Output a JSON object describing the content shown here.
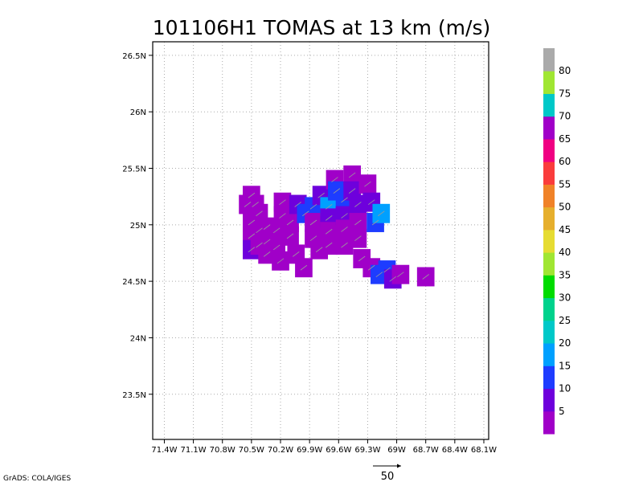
{
  "chart_data": {
    "type": "heatmap",
    "title": "101106H1 TOMAS at 13 km (m/s)",
    "x_tick_labels": [
      "71.4W",
      "71.1W",
      "70.8W",
      "70.5W",
      "70.2W",
      "69.9W",
      "69.6W",
      "69.3W",
      "69W",
      "68.7W",
      "68.4W",
      "68.1W"
    ],
    "x_tick_values": [
      -71.4,
      -71.1,
      -70.8,
      -70.5,
      -70.2,
      -69.9,
      -69.6,
      -69.3,
      -69.0,
      -68.7,
      -68.4,
      -68.1
    ],
    "y_tick_labels": [
      "23.5N",
      "24N",
      "24.5N",
      "25N",
      "25.5N",
      "26N",
      "26.5N"
    ],
    "y_tick_values": [
      23.5,
      24.0,
      24.5,
      25.0,
      25.5,
      26.0,
      26.5
    ],
    "xlim": [
      -71.52,
      -68.05
    ],
    "ylim": [
      23.1,
      26.62
    ],
    "grid": true,
    "colorbar": {
      "labels": [
        "5",
        "10",
        "15",
        "20",
        "25",
        "30",
        "35",
        "40",
        "45",
        "50",
        "55",
        "60",
        "65",
        "70",
        "75",
        "80"
      ],
      "label_values": [
        5,
        10,
        15,
        20,
        25,
        30,
        35,
        40,
        45,
        50,
        55,
        60,
        65,
        70,
        75,
        80
      ],
      "colors": [
        "#a000c8",
        "#6e00dc",
        "#1e3cff",
        "#00a0ff",
        "#00c8c8",
        "#00d28c",
        "#00dc00",
        "#a0e632",
        "#e6dc32",
        "#e6af2d",
        "#f08228",
        "#fa3c3c",
        "#f00082",
        "#a000c8",
        "#00c8c8",
        "#a0e632",
        "#aaaaaa"
      ]
    },
    "cells": [
      {
        "lon": -70.54,
        "lat": 25.18,
        "v": 4
      },
      {
        "lon": -70.5,
        "lat": 25.26,
        "v": 4
      },
      {
        "lon": -70.46,
        "lat": 25.18,
        "v": 4
      },
      {
        "lon": -70.5,
        "lat": 25.02,
        "v": 3
      },
      {
        "lon": -70.5,
        "lat": 24.9,
        "v": 3
      },
      {
        "lon": -70.5,
        "lat": 24.78,
        "v": 8
      },
      {
        "lon": -70.42,
        "lat": 25.1,
        "v": 3
      },
      {
        "lon": -70.42,
        "lat": 24.95,
        "v": 3
      },
      {
        "lon": -70.42,
        "lat": 24.82,
        "v": 3
      },
      {
        "lon": -70.34,
        "lat": 24.98,
        "v": 3
      },
      {
        "lon": -70.34,
        "lat": 24.85,
        "v": 3
      },
      {
        "lon": -70.34,
        "lat": 24.74,
        "v": 4
      },
      {
        "lon": -70.24,
        "lat": 24.95,
        "v": 4
      },
      {
        "lon": -70.24,
        "lat": 24.8,
        "v": 3
      },
      {
        "lon": -70.2,
        "lat": 24.68,
        "v": 4
      },
      {
        "lon": -70.18,
        "lat": 25.2,
        "v": 4
      },
      {
        "lon": -70.18,
        "lat": 25.08,
        "v": 3
      },
      {
        "lon": -70.1,
        "lat": 25.02,
        "v": 3
      },
      {
        "lon": -70.1,
        "lat": 24.9,
        "v": 3
      },
      {
        "lon": -70.04,
        "lat": 24.74,
        "v": 3
      },
      {
        "lon": -69.96,
        "lat": 24.62,
        "v": 4
      },
      {
        "lon": -70.02,
        "lat": 25.18,
        "v": 8
      },
      {
        "lon": -69.94,
        "lat": 25.1,
        "v": 12
      },
      {
        "lon": -69.86,
        "lat": 25.16,
        "v": 12
      },
      {
        "lon": -69.86,
        "lat": 25.02,
        "v": 3
      },
      {
        "lon": -69.86,
        "lat": 24.88,
        "v": 3
      },
      {
        "lon": -69.8,
        "lat": 24.78,
        "v": 4
      },
      {
        "lon": -69.78,
        "lat": 25.26,
        "v": 8
      },
      {
        "lon": -69.7,
        "lat": 25.16,
        "v": 16
      },
      {
        "lon": -69.7,
        "lat": 25.06,
        "v": 8
      },
      {
        "lon": -69.7,
        "lat": 24.94,
        "v": 3
      },
      {
        "lon": -69.7,
        "lat": 24.82,
        "v": 3
      },
      {
        "lon": -69.64,
        "lat": 25.4,
        "v": 4
      },
      {
        "lon": -69.62,
        "lat": 25.3,
        "v": 12
      },
      {
        "lon": -69.54,
        "lat": 25.22,
        "v": 12
      },
      {
        "lon": -69.54,
        "lat": 25.08,
        "v": 8
      },
      {
        "lon": -69.54,
        "lat": 24.96,
        "v": 3
      },
      {
        "lon": -69.54,
        "lat": 24.82,
        "v": 3
      },
      {
        "lon": -69.46,
        "lat": 25.44,
        "v": 4
      },
      {
        "lon": -69.46,
        "lat": 25.3,
        "v": 8
      },
      {
        "lon": -69.4,
        "lat": 25.18,
        "v": 8
      },
      {
        "lon": -69.4,
        "lat": 25.02,
        "v": 3
      },
      {
        "lon": -69.4,
        "lat": 24.88,
        "v": 3
      },
      {
        "lon": -69.36,
        "lat": 24.7,
        "v": 3
      },
      {
        "lon": -69.3,
        "lat": 25.36,
        "v": 4
      },
      {
        "lon": -69.26,
        "lat": 25.2,
        "v": 8
      },
      {
        "lon": -69.22,
        "lat": 25.02,
        "v": 12
      },
      {
        "lon": -69.16,
        "lat": 25.1,
        "v": 17
      },
      {
        "lon": -69.26,
        "lat": 24.62,
        "v": 4
      },
      {
        "lon": -69.18,
        "lat": 24.56,
        "v": 12
      },
      {
        "lon": -69.1,
        "lat": 24.6,
        "v": 12
      },
      {
        "lon": -69.04,
        "lat": 24.52,
        "v": 8
      },
      {
        "lon": -68.96,
        "lat": 24.56,
        "v": 4
      },
      {
        "lon": -68.7,
        "lat": 24.54,
        "v": 4
      }
    ]
  },
  "footer": {
    "credit": "GrADS: COLA/IGES",
    "vector_scale_label": "50"
  },
  "colors": {
    "frame": "#000000",
    "grid": "#aaaaaa",
    "arrow": "#9a9a9a"
  }
}
